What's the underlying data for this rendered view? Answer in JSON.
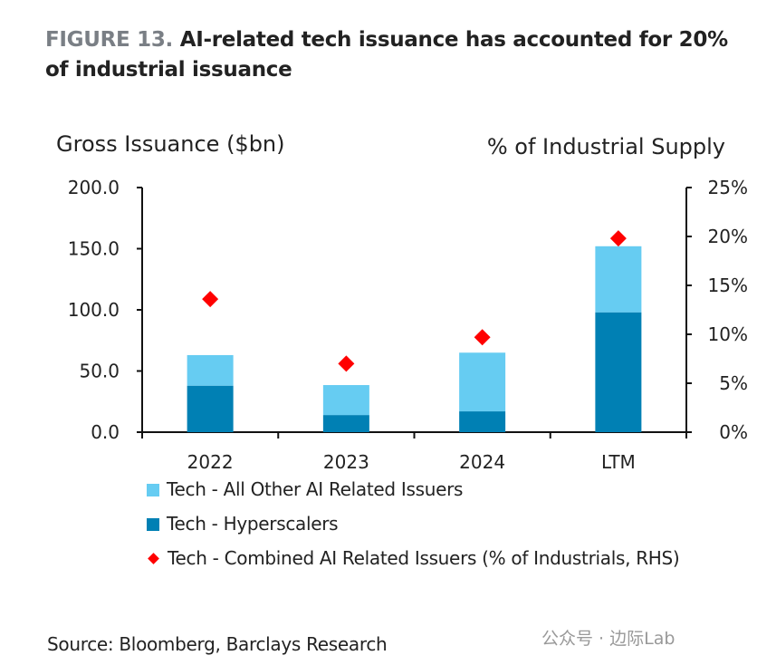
{
  "title": {
    "figure_label": "FIGURE 13.",
    "text": "AI-related tech issuance has accounted for 20% of industrial issuance"
  },
  "source": "Source: Bloomberg, Barclays Research",
  "watermark": "公众号 · 边际Lab",
  "colors": {
    "others": "#66ccf2",
    "hyperscalers": "#0080b4",
    "combined": "#ff0000"
  },
  "chart_data": {
    "type": "bar",
    "stacked": true,
    "categories": [
      "2022",
      "2023",
      "2024",
      "LTM"
    ],
    "ylabel": "Gross Issuance ($bn)",
    "ylabel_right": "% of Industrial Supply",
    "ylim": [
      0,
      200
    ],
    "yticks": [
      "0.0",
      "50.0",
      "100.0",
      "150.0",
      "200.0"
    ],
    "ylim_right": [
      0,
      25
    ],
    "yticks_right": [
      "0%",
      "5%",
      "10%",
      "15%",
      "20%",
      "25%"
    ],
    "grid": false,
    "legend_position": "bottom",
    "series": [
      {
        "name": "Tech - Hyperscalers",
        "kind": "bar",
        "values": [
          38,
          14,
          17,
          98
        ]
      },
      {
        "name": "Tech - All Other AI Related Issuers",
        "kind": "bar",
        "values": [
          25,
          24.5,
          48,
          54
        ]
      },
      {
        "name": "Tech - Combined AI Related Issuers (% of Industrials, RHS)",
        "kind": "marker",
        "axis": "right",
        "values": [
          13.6,
          7.0,
          9.7,
          19.8
        ]
      }
    ]
  }
}
